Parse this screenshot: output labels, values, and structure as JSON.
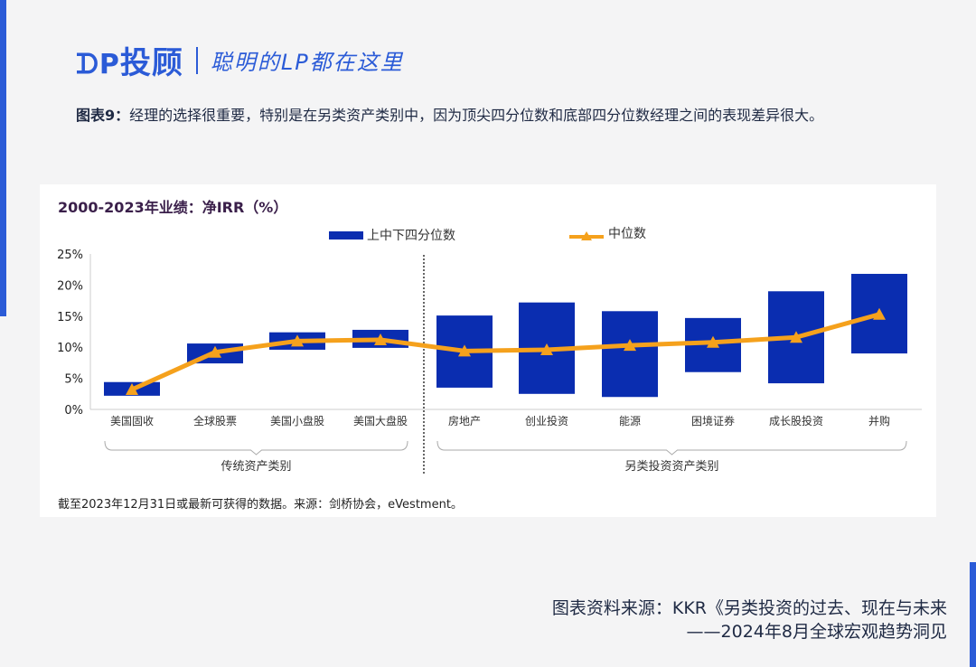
{
  "header": {
    "logo_text": "投顾",
    "slogan": "聪明的LP都在这里"
  },
  "figure": {
    "label": "图表9：",
    "caption": "经理的选择很重要，特别是在另类资产类别中，因为顶尖四分位数和底部四分位数经理之间的表现差异很大。"
  },
  "card": {
    "title": "2000-2023年业绩：净IRR（%）",
    "note": "截至2023年12月31日或最新可获得的数据。来源：剑桥协会，eVestment。"
  },
  "source": {
    "line1": "图表资料来源：KKR《另类投资的过去、现在与未来",
    "line2": "——2024年8月全球宏观趋势洞见"
  },
  "colors": {
    "bar": "#0a2db0",
    "line": "#f5a11c",
    "accent": "#2b5bd7"
  },
  "chart_data": {
    "type": "bar",
    "subtype": "floating-range with median line",
    "categories": [
      "美国固收",
      "全球股票",
      "美国小盘股",
      "美国大盘股",
      "房地产",
      "创业投资",
      "能源",
      "困境证券",
      "成长股投资",
      "并购"
    ],
    "series": [
      {
        "name": "上中下四分位数",
        "type": "range",
        "low": [
          2.2,
          7.4,
          9.6,
          9.9,
          3.5,
          2.5,
          2.0,
          6.0,
          4.2,
          9.0
        ],
        "high": [
          4.4,
          10.6,
          12.4,
          12.8,
          15.1,
          17.2,
          15.8,
          14.7,
          19.0,
          21.8
        ]
      },
      {
        "name": "中位数",
        "type": "line",
        "values": [
          3.2,
          9.2,
          11.0,
          11.2,
          9.4,
          9.6,
          10.3,
          10.8,
          11.6,
          15.3
        ]
      }
    ],
    "ylim": [
      0,
      25
    ],
    "yticks": [
      "0%",
      "5%",
      "10%",
      "15%",
      "20%",
      "25%"
    ],
    "groups": [
      {
        "label": "传统资产类别",
        "count": 4
      },
      {
        "label": "另类投资资产类别",
        "count": 6
      }
    ],
    "legend": "top",
    "grid": false
  }
}
